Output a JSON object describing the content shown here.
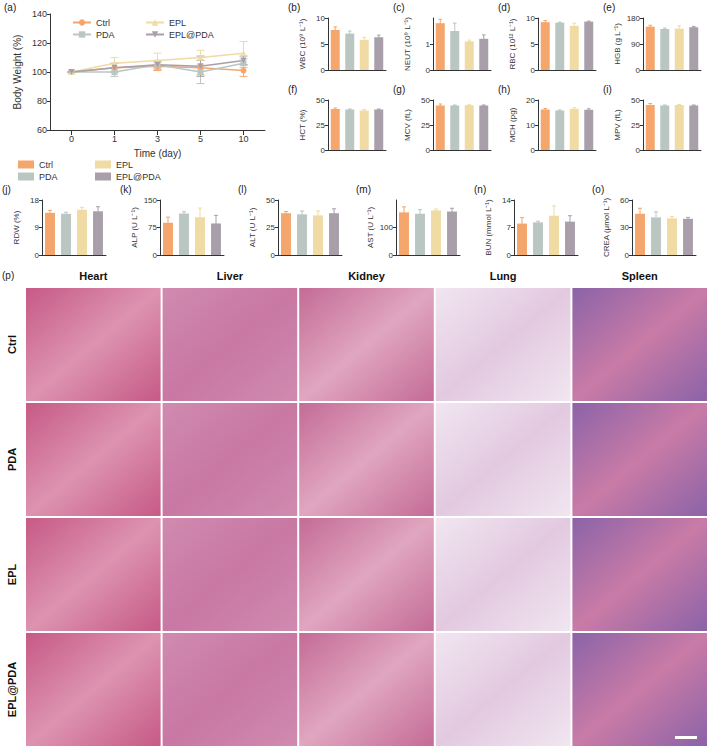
{
  "chart_data": [
    {
      "type": "line",
      "panel": "(a)",
      "xlabel": "Time (day)",
      "ylabel": "Body Weight (%)",
      "categories": [
        "0",
        "1",
        "3",
        "5",
        "10"
      ],
      "ylim": [
        60,
        140
      ],
      "yticks": [
        60,
        80,
        100,
        120,
        140
      ],
      "grid": false,
      "legend": "upper left",
      "series": [
        {
          "name": "Ctrl",
          "color": "#f4a66c",
          "marker": "circle",
          "line_style": "solid",
          "values": [
            100,
            103,
            104,
            103,
            101
          ],
          "errors": [
            0,
            3,
            3,
            5,
            4
          ]
        },
        {
          "name": "PDA",
          "color": "#b9c6c1",
          "marker": "square",
          "line_style": "solid",
          "values": [
            100,
            100,
            105,
            100,
            106
          ],
          "errors": [
            0,
            3,
            2,
            8,
            3
          ]
        },
        {
          "name": "EPL",
          "color": "#f0dba4",
          "marker": "triangle",
          "line_style": "solid",
          "values": [
            100,
            106,
            108,
            110,
            113
          ],
          "errors": [
            0,
            4,
            5,
            5,
            8
          ]
        },
        {
          "name": "EPL@PDA",
          "color": "#a89fab",
          "marker": "triangle-down",
          "line_style": "solid",
          "values": [
            100,
            103,
            105,
            104,
            108
          ],
          "errors": [
            0,
            3,
            3,
            7,
            3
          ]
        }
      ]
    },
    {
      "type": "bar",
      "panel": "(b)",
      "ylabel": "WBC (10⁹ L⁻¹)",
      "categories": [
        "Ctrl",
        "PDA",
        "EPL",
        "EPL@PDA"
      ],
      "colors": [
        "#f4a66c",
        "#b9c6c1",
        "#f0dba4",
        "#a89fab"
      ],
      "values": [
        7.7,
        7.0,
        5.8,
        6.3
      ],
      "errors": [
        0.6,
        0.5,
        0.5,
        0.4
      ],
      "ylim": [
        0,
        10
      ],
      "yticks": [
        0,
        5,
        10
      ],
      "grid": false,
      "tick_labels": "y"
    },
    {
      "type": "bar",
      "panel": "(c)",
      "ylabel": "NEUT (10⁹ L⁻¹)",
      "categories": [
        "Ctrl",
        "PDA",
        "EPL",
        "EPL@PDA"
      ],
      "colors": [
        "#f4a66c",
        "#b9c6c1",
        "#f0dba4",
        "#a89fab"
      ],
      "values": [
        1.8,
        1.5,
        1.1,
        1.2
      ],
      "errors": [
        0.15,
        0.3,
        0.05,
        0.15
      ],
      "ylim": [
        0,
        2
      ],
      "yticks": [
        0,
        1
      ],
      "grid": false,
      "tick_labels": "y"
    },
    {
      "type": "bar",
      "panel": "(d)",
      "ylabel": "RBC (10¹² L⁻¹)",
      "categories": [
        "Ctrl",
        "PDA",
        "EPL",
        "EPL@PDA"
      ],
      "colors": [
        "#f4a66c",
        "#b9c6c1",
        "#f0dba4",
        "#a89fab"
      ],
      "values": [
        9.2,
        9.1,
        8.5,
        9.3
      ],
      "errors": [
        0.3,
        0.1,
        0.5,
        0.1
      ],
      "ylim": [
        0,
        10
      ],
      "yticks": [
        0,
        5,
        10
      ],
      "grid": false,
      "tick_labels": "y"
    },
    {
      "type": "bar",
      "panel": "(e)",
      "ylabel": "HGB (g L⁻¹)",
      "categories": [
        "Ctrl",
        "PDA",
        "EPL",
        "EPL@PDA"
      ],
      "colors": [
        "#f4a66c",
        "#b9c6c1",
        "#f0dba4",
        "#a89fab"
      ],
      "values": [
        150,
        142,
        143,
        148
      ],
      "errors": [
        5,
        3,
        10,
        3
      ],
      "ylim": [
        0,
        180
      ],
      "yticks": [
        0,
        90,
        180
      ],
      "grid": false,
      "tick_labels": "y"
    },
    {
      "type": "bar",
      "panel": "(f)",
      "ylabel": "HCT (%)",
      "categories": [
        "Ctrl",
        "PDA",
        "EPL",
        "EPL@PDA"
      ],
      "colors": [
        "#f4a66c",
        "#b9c6c1",
        "#f0dba4",
        "#a89fab"
      ],
      "values": [
        41,
        40.5,
        39.5,
        40.5
      ],
      "errors": [
        1,
        0.5,
        1,
        0.5
      ],
      "ylim": [
        0,
        50
      ],
      "yticks": [
        0,
        25,
        50
      ],
      "grid": false,
      "tick_labels": "y"
    },
    {
      "type": "bar",
      "panel": "(g)",
      "ylabel": "MCV (fL)",
      "categories": [
        "Ctrl",
        "PDA",
        "EPL",
        "EPL@PDA"
      ],
      "colors": [
        "#f4a66c",
        "#b9c6c1",
        "#f0dba4",
        "#a89fab"
      ],
      "values": [
        44.5,
        44.5,
        44.8,
        44.5
      ],
      "errors": [
        1.5,
        0.5,
        0.5,
        0.5
      ],
      "ylim": [
        0,
        50
      ],
      "yticks": [
        0,
        25,
        50
      ],
      "grid": false,
      "tick_labels": "y"
    },
    {
      "type": "bar",
      "panel": "(h)",
      "ylabel": "MCH (pg)",
      "categories": [
        "Ctrl",
        "PDA",
        "EPL",
        "EPL@PDA"
      ],
      "colors": [
        "#f4a66c",
        "#b9c6c1",
        "#f0dba4",
        "#a89fab"
      ],
      "values": [
        16.2,
        15.8,
        16.5,
        16.1
      ],
      "errors": [
        0.4,
        0.2,
        0.4,
        0.4
      ],
      "ylim": [
        0,
        20
      ],
      "yticks": [
        0,
        10,
        20
      ],
      "grid": false,
      "tick_labels": "y"
    },
    {
      "type": "bar",
      "panel": "(i)",
      "ylabel": "MPV (fL)",
      "categories": [
        "Ctrl",
        "PDA",
        "EPL",
        "EPL@PDA"
      ],
      "colors": [
        "#f4a66c",
        "#b9c6c1",
        "#f0dba4",
        "#a89fab"
      ],
      "values": [
        45,
        44.5,
        45,
        44.5
      ],
      "errors": [
        1.5,
        0.5,
        0.5,
        0.5
      ],
      "ylim": [
        0,
        50
      ],
      "yticks": [
        0,
        25,
        50
      ],
      "grid": false,
      "tick_labels": "y"
    },
    {
      "type": "bar",
      "panel": "(j)",
      "ylabel": "RDW (%)",
      "categories": [
        "Ctrl",
        "PDA",
        "EPL",
        "EPL@PDA"
      ],
      "colors": [
        "#f4a66c",
        "#b9c6c1",
        "#f0dba4",
        "#a89fab"
      ],
      "values": [
        13.8,
        13.5,
        14.8,
        14.3
      ],
      "errors": [
        0.8,
        0.5,
        0.8,
        1.5
      ],
      "ylim": [
        0,
        18
      ],
      "yticks": [
        0,
        9,
        18
      ],
      "grid": false,
      "tick_labels": "y"
    },
    {
      "type": "bar",
      "panel": "(k)",
      "ylabel": "ALP (U L⁻¹)",
      "categories": [
        "Ctrl",
        "PDA",
        "EPL",
        "EPL@PDA"
      ],
      "colors": [
        "#f4a66c",
        "#b9c6c1",
        "#f0dba4",
        "#a89fab"
      ],
      "values": [
        88,
        113,
        103,
        86
      ],
      "errors": [
        15,
        5,
        25,
        22
      ],
      "ylim": [
        0,
        150
      ],
      "yticks": [
        0,
        75,
        150
      ],
      "grid": false,
      "tick_labels": "y"
    },
    {
      "type": "bar",
      "panel": "(l)",
      "ylabel": "ALT (U L⁻¹)",
      "categories": [
        "Ctrl",
        "PDA",
        "EPL",
        "EPL@PDA"
      ],
      "colors": [
        "#f4a66c",
        "#b9c6c1",
        "#f0dba4",
        "#a89fab"
      ],
      "values": [
        38,
        37,
        36,
        38
      ],
      "errors": [
        1.5,
        3,
        4,
        4
      ],
      "ylim": [
        0,
        50
      ],
      "yticks": [
        0,
        25,
        50
      ],
      "grid": false,
      "tick_labels": "y"
    },
    {
      "type": "bar",
      "panel": "(m)",
      "ylabel": "AST (U L⁻¹)",
      "categories": [
        "Ctrl",
        "PDA",
        "EPL",
        "EPL@PDA"
      ],
      "colors": [
        "#f4a66c",
        "#b9c6c1",
        "#f0dba4",
        "#a89fab"
      ],
      "values": [
        155,
        150,
        162,
        158
      ],
      "errors": [
        20,
        15,
        5,
        12
      ],
      "ylim": [
        0,
        200
      ],
      "yticks": [
        0,
        100
      ],
      "grid": false,
      "tick_labels": "y"
    },
    {
      "type": "bar",
      "panel": "(n)",
      "ylabel": "BUN (mmol L⁻¹)",
      "categories": [
        "Ctrl",
        "PDA",
        "EPL",
        "EPL@PDA"
      ],
      "colors": [
        "#f4a66c",
        "#b9c6c1",
        "#f0dba4",
        "#a89fab"
      ],
      "values": [
        8,
        8.3,
        10,
        8.5
      ],
      "errors": [
        1.5,
        0.3,
        2.5,
        1.5
      ],
      "ylim": [
        0,
        14
      ],
      "yticks": [
        0,
        7,
        14
      ],
      "grid": false,
      "tick_labels": "y"
    },
    {
      "type": "bar",
      "panel": "(o)",
      "ylabel": "CREA (μmol L⁻¹)",
      "categories": [
        "Ctrl",
        "PDA",
        "EPL",
        "EPL@PDA"
      ],
      "colors": [
        "#f4a66c",
        "#b9c6c1",
        "#f0dba4",
        "#a89fab"
      ],
      "values": [
        45,
        41,
        40,
        39.5
      ],
      "errors": [
        6,
        6,
        2,
        1.5
      ],
      "ylim": [
        0,
        60
      ],
      "yticks": [
        0,
        30,
        60
      ],
      "grid": false,
      "tick_labels": "y"
    }
  ],
  "histology": {
    "panel": "(p)",
    "columns": [
      "Heart",
      "Liver",
      "Kidney",
      "Lung",
      "Spleen"
    ],
    "rows": [
      "Ctrl",
      "PDA",
      "EPL",
      "EPL@PDA"
    ]
  }
}
